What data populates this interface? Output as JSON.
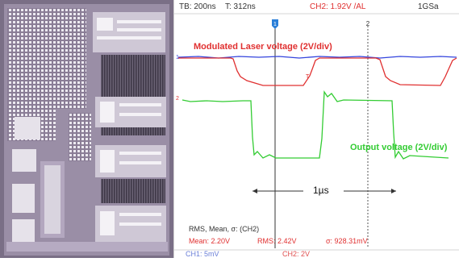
{
  "oscilloscope": {
    "header": {
      "timebase": "TB: 200ns",
      "trigger_time": "T: 312ns",
      "trigger_setting": "CH2: 1.92V /AL",
      "sample_rate": "1GSa"
    },
    "markers": {
      "cursor_a": "1",
      "cursor_b": "2",
      "ch1_marker": "1",
      "ch2_marker": "2",
      "ch2_level_marker": "T"
    },
    "labels": {
      "laser": "Modulated Laser voltage (2V/div)",
      "output": "Output voltage (2V/div)",
      "period": "1µs"
    },
    "stats": {
      "title": "RMS, Mean, σ: (CH2)",
      "mean": "Mean: 2.20V",
      "rms": "RMS: 2.42V",
      "sigma": "σ: 928.31mV"
    },
    "footer": {
      "ch1": "CH1: 5mV",
      "ch2": "CH2: 2V"
    },
    "colors": {
      "ch1_blue": "#3344dd",
      "ch2_red": "#e03030",
      "output_green": "#33cc33"
    }
  }
}
